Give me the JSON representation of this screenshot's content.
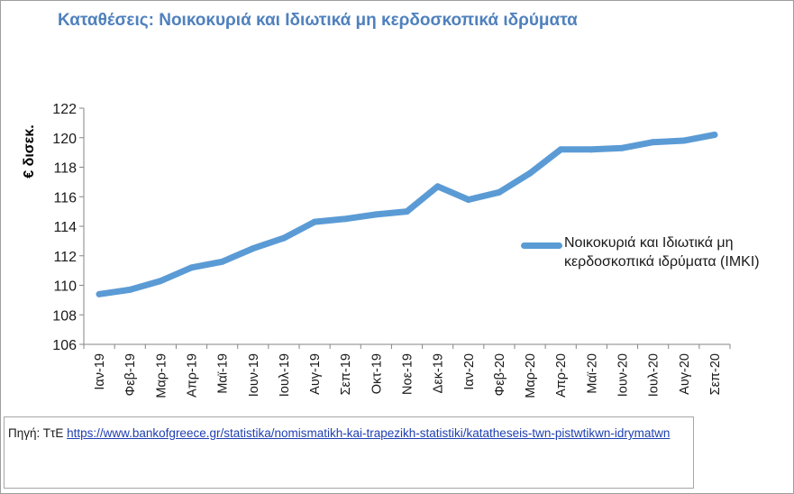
{
  "title": "Καταθέσεις: Νοικοκυριά και Ιδιωτικά μη κερδοσκοπικά ιδρύματα",
  "source": {
    "label": "Πηγή: ΤτΕ",
    "url": "https://www.bankofgreece.gr/statistika/nomismatikh-kai-trapezikh-statistiki/katatheseis-twn-pistwtikwn-idrymatwn"
  },
  "colors": {
    "series": "#5b9bd5",
    "title": "#4f81bd",
    "axis": "#868686"
  },
  "chart_data": {
    "type": "line",
    "title": "Καταθέσεις: Νοικοκυριά και Ιδιωτικά μη κερδοσκοπικά ιδρύματα",
    "ylabel": "€ δισεκ.",
    "xlabel": "",
    "ylim": [
      106,
      122
    ],
    "yticks": [
      106,
      108,
      110,
      112,
      114,
      116,
      118,
      120,
      122
    ],
    "grid": false,
    "legend_position": "right",
    "categories": [
      "Ιαν-19",
      "Φεβ-19",
      "Μαρ-19",
      "Απρ-19",
      "Μαϊ-19",
      "Ιουν-19",
      "Ιουλ-19",
      "Αυγ-19",
      "Σεπ-19",
      "Οκτ-19",
      "Νοε-19",
      "Δεκ-19",
      "Ιαν-20",
      "Φεβ-20",
      "Μαρ-20",
      "Απρ-20",
      "Μαϊ-20",
      "Ιουν-20",
      "Ιουλ-20",
      "Αυγ-20",
      "Σεπ-20"
    ],
    "series": [
      {
        "name": "Νοικοκυριά και Ιδιωτικά μη κερδοσκοπικά ιδρύματα (ΙΜΚΙ)",
        "values": [
          109.4,
          109.7,
          110.3,
          111.2,
          111.6,
          112.5,
          113.2,
          114.3,
          114.5,
          114.8,
          115.0,
          116.7,
          115.8,
          116.3,
          117.6,
          119.2,
          119.2,
          119.3,
          119.7,
          119.8,
          120.2
        ]
      }
    ]
  }
}
